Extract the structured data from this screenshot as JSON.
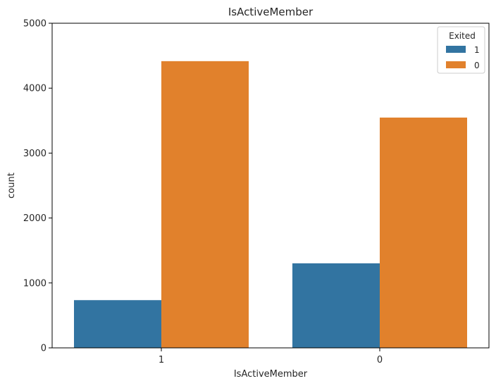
{
  "chart_data": {
    "type": "bar",
    "title": "IsActiveMember",
    "xlabel": "IsActiveMember",
    "ylabel": "count",
    "categories": [
      "1",
      "0"
    ],
    "series": [
      {
        "name": "1",
        "color": "#3274a1",
        "values": [
          735,
          1302
        ]
      },
      {
        "name": "0",
        "color": "#e1812c",
        "values": [
          4416,
          3547
        ]
      }
    ],
    "ylim": [
      0,
      5000
    ],
    "yticks": [
      0,
      1000,
      2000,
      3000,
      4000,
      5000
    ],
    "legend": {
      "title": "Exited",
      "placement": "top-right"
    },
    "grid": false
  }
}
